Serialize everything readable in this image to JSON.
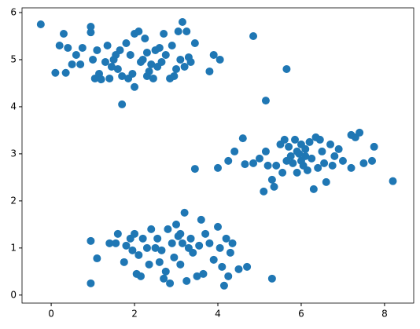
{
  "chart_data": {
    "type": "scatter",
    "color": "#1f77b4",
    "x": [
      -0.25,
      0.1,
      0.3,
      0.95,
      0.95,
      1.7,
      3.05,
      3.15,
      3.25,
      3.45,
      3.8,
      3.9,
      4.05,
      4.85,
      5.65,
      5.15,
      2.0,
      2.3,
      2.7,
      0.2,
      0.4,
      0.5,
      0.6,
      0.7,
      0.75,
      1.0,
      1.05,
      1.15,
      1.2,
      1.3,
      1.35,
      1.4,
      1.5,
      1.6,
      1.65,
      1.7,
      1.8,
      1.85,
      1.9,
      2.0,
      2.1,
      2.2,
      2.25,
      2.3,
      2.35,
      2.4,
      2.5,
      2.55,
      2.6,
      2.65,
      2.75,
      2.85,
      2.9,
      3.0,
      3.1,
      3.2,
      3.3,
      3.35,
      1.55,
      1.45,
      2.15,
      2.45,
      1.95,
      0.35,
      1.1,
      2.95,
      3.45,
      4.0,
      4.25,
      4.4,
      4.6,
      4.65,
      4.85,
      5.0,
      5.1,
      5.15,
      5.3,
      5.35,
      5.4,
      5.5,
      5.55,
      5.6,
      5.7,
      5.75,
      5.8,
      5.85,
      5.9,
      5.95,
      6.0,
      6.05,
      6.1,
      6.15,
      6.2,
      6.25,
      6.3,
      6.35,
      6.4,
      6.5,
      6.55,
      6.6,
      6.7,
      6.8,
      6.9,
      7.0,
      7.2,
      7.3,
      7.4,
      7.5,
      7.7,
      7.75,
      8.2,
      7.2,
      6.0,
      5.65,
      5.2,
      6.45,
      6.75,
      6.1,
      5.9,
      0.95,
      0.95,
      1.1,
      1.4,
      1.55,
      1.6,
      1.75,
      1.8,
      1.9,
      2.0,
      2.05,
      2.15,
      2.1,
      2.2,
      2.35,
      2.4,
      2.5,
      2.55,
      2.65,
      2.7,
      2.75,
      2.8,
      2.85,
      2.9,
      2.95,
      3.0,
      3.05,
      3.1,
      3.15,
      3.2,
      3.25,
      3.3,
      3.4,
      3.5,
      3.6,
      3.65,
      3.7,
      3.8,
      3.9,
      4.0,
      4.05,
      4.1,
      4.15,
      4.2,
      4.25,
      4.3,
      4.5,
      4.7,
      5.3,
      3.1,
      2.3,
      1.95,
      3.35,
      2.6,
      3.55,
      4.35
    ],
    "values": [
      5.75,
      4.72,
      5.55,
      5.7,
      5.58,
      4.05,
      5.6,
      5.8,
      5.6,
      5.35,
      4.75,
      5.1,
      5.0,
      5.5,
      4.8,
      4.13,
      4.42,
      4.65,
      5.55,
      5.3,
      5.25,
      4.9,
      5.1,
      4.9,
      5.25,
      5.0,
      4.6,
      4.7,
      4.58,
      4.95,
      5.3,
      4.6,
      5.0,
      4.8,
      5.2,
      4.65,
      5.35,
      4.6,
      5.1,
      5.55,
      5.6,
      5.0,
      5.45,
      5.15,
      4.75,
      4.9,
      5.2,
      4.85,
      5.25,
      4.95,
      5.1,
      4.6,
      5.3,
      4.8,
      5.0,
      4.85,
      5.05,
      4.95,
      5.1,
      4.85,
      4.95,
      4.6,
      4.7,
      4.72,
      5.2,
      4.65,
      2.68,
      2.7,
      2.85,
      3.05,
      3.33,
      2.78,
      2.8,
      2.9,
      2.2,
      3.05,
      2.45,
      2.3,
      2.75,
      3.2,
      2.6,
      3.3,
      3.15,
      2.95,
      2.8,
      3.3,
      2.6,
      3.0,
      2.85,
      2.75,
      3.1,
      2.65,
      3.25,
      2.9,
      2.25,
      3.35,
      2.7,
      3.05,
      2.8,
      2.4,
      3.2,
      2.95,
      3.1,
      2.85,
      3.4,
      3.35,
      3.45,
      2.8,
      2.85,
      3.15,
      2.42,
      2.7,
      3.2,
      2.85,
      2.75,
      3.3,
      2.75,
      2.95,
      3.05,
      1.15,
      0.25,
      0.78,
      1.1,
      1.1,
      1.3,
      0.7,
      1.05,
      1.2,
      1.3,
      0.45,
      0.4,
      0.85,
      1.2,
      0.65,
      1.4,
      1.0,
      1.2,
      0.95,
      0.35,
      0.5,
      1.4,
      0.25,
      1.1,
      0.8,
      1.5,
      1.25,
      0.65,
      1.1,
      1.75,
      0.3,
      1.0,
      0.9,
      0.4,
      1.6,
      0.45,
      1.3,
      1.1,
      0.75,
      1.45,
      1.0,
      0.6,
      0.2,
      1.2,
      0.4,
      0.9,
      0.55,
      0.6,
      0.35,
      1.3,
      1.0,
      0.95,
      1.2,
      0.7,
      1.05,
      1.1
    ],
    "xlim": [
      -0.7,
      8.7
    ],
    "ylim": [
      -0.17,
      6.1
    ],
    "xticks": [
      0,
      2,
      4,
      6,
      8
    ],
    "yticks": [
      0,
      1,
      2,
      3,
      4,
      5,
      6
    ]
  }
}
